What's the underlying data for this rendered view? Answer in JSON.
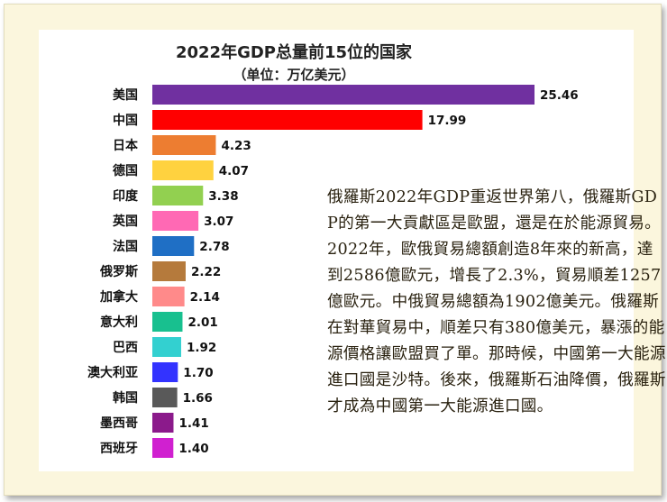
{
  "chart_data": {
    "type": "bar",
    "orientation": "horizontal",
    "title": "2022年GDP总量前15位的国家",
    "subtitle": "（单位：万亿美元）",
    "categories": [
      "美国",
      "中国",
      "日本",
      "德国",
      "印度",
      "英国",
      "法国",
      "俄罗斯",
      "加拿大",
      "意大利",
      "巴西",
      "澳大利亚",
      "韩国",
      "墨西哥",
      "西班牙"
    ],
    "values": [
      25.46,
      17.99,
      4.23,
      4.07,
      3.38,
      3.07,
      2.78,
      2.22,
      2.14,
      2.01,
      1.92,
      1.7,
      1.66,
      1.41,
      1.4
    ],
    "value_labels": [
      "25.46",
      "17.99",
      "4.23",
      "4.07",
      "3.38",
      "3.07",
      "2.78",
      "2.22",
      "2.14",
      "2.01",
      "1.92",
      "1.70",
      "1.66",
      "1.41",
      "1.40"
    ],
    "colors": [
      "#7030a0",
      "#ff0000",
      "#ed7d31",
      "#ffd23f",
      "#92d050",
      "#ff69b4",
      "#1f6fc5",
      "#b57a3c",
      "#ff8a8a",
      "#18c08f",
      "#33d0d0",
      "#3333ff",
      "#595959",
      "#8b1a8b",
      "#d020d0"
    ],
    "xlim": [
      0,
      25.46
    ],
    "grid": false,
    "legend": "none"
  },
  "annotation": {
    "text": "俄羅斯2022年GDP重返世界第八，俄羅斯GDP的第一大貢獻區是歐盟，還是在於能源貿易。2022年，歐俄貿易總額創造8年來的新高，達到2586億歐元，增長了2.3%，貿易順差1257億歐元。中俄貿易總額為1902億美元。俄羅斯在對華貿易中，順差只有380億美元，暴漲的能源價格讓歐盟買了單。那時候，中國第一大能源進口國是沙特。後來，俄羅斯石油降價，俄羅斯才成為中國第一大能源進口國。"
  },
  "colors": {
    "frame_background": "#fbf6dd",
    "panel_background": "#ffffff"
  }
}
